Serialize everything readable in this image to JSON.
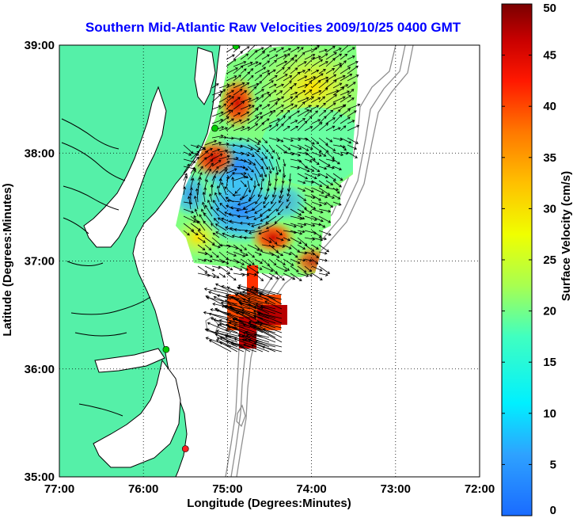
{
  "title": "Southern Mid-Atlantic Raw Velocities 2009/10/25 0400 GMT",
  "map": {
    "xlabel": "Longitude (Degrees:Minutes)",
    "ylabel": "Latitude (Degrees:Minutes)",
    "lon_range": [
      -77,
      -72
    ],
    "lat_range": [
      35,
      39
    ],
    "x_ticks": [
      {
        "value": -77,
        "label": "77:00"
      },
      {
        "value": -76,
        "label": "76:00"
      },
      {
        "value": -75,
        "label": "75:00"
      },
      {
        "value": -74,
        "label": "74:00"
      },
      {
        "value": -73,
        "label": "73:00"
      },
      {
        "value": -72,
        "label": "72:00"
      }
    ],
    "y_ticks": [
      {
        "value": 39,
        "label": "39:00"
      },
      {
        "value": 38,
        "label": "38:00"
      },
      {
        "value": 37,
        "label": "37:00"
      },
      {
        "value": 36,
        "label": "36:00"
      },
      {
        "value": 35,
        "label": "35:00"
      }
    ],
    "grid": "dotted",
    "land_color": "#55f0a8",
    "sea_color": "#ffffff",
    "stations": [
      {
        "lon": -74.9,
        "lat": 38.99,
        "color": "#00cc00"
      },
      {
        "lon": -75.15,
        "lat": 38.23,
        "color": "#00cc00"
      },
      {
        "lon": -75.73,
        "lat": 36.18,
        "color": "#00cc00"
      },
      {
        "lon": -75.5,
        "lat": 35.26,
        "color": "#ff2020"
      }
    ]
  },
  "colorbar": {
    "label": "Surface Velocity (cm/s)",
    "range": [
      0,
      50
    ],
    "ticks": [
      "0",
      "5",
      "10",
      "15",
      "20",
      "25",
      "30",
      "35",
      "40",
      "45",
      "50"
    ]
  }
}
